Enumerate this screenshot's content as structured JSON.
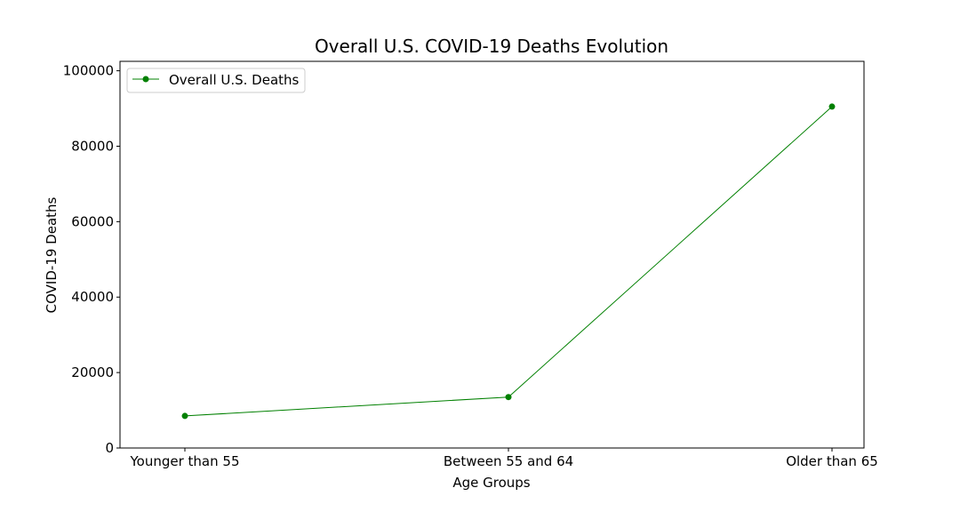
{
  "chart_data": {
    "type": "line",
    "title": "Overall U.S. COVID-19 Deaths Evolution",
    "xlabel": "Age Groups",
    "ylabel": "COVID-19 Deaths",
    "categories": [
      "Younger than 55",
      "Between 55 and 64",
      "Older than 65"
    ],
    "series": [
      {
        "name": "Overall U.S. Deaths",
        "values": [
          8500,
          13500,
          90500
        ],
        "color": "#008000"
      }
    ],
    "ylim": [
      0,
      102500
    ],
    "yticks": [
      0,
      20000,
      40000,
      60000,
      80000,
      100000
    ],
    "ytick_labels": [
      "0",
      "20000",
      "40000",
      "60000",
      "80000",
      "100000"
    ],
    "legend": "top-left",
    "grid": false
  }
}
